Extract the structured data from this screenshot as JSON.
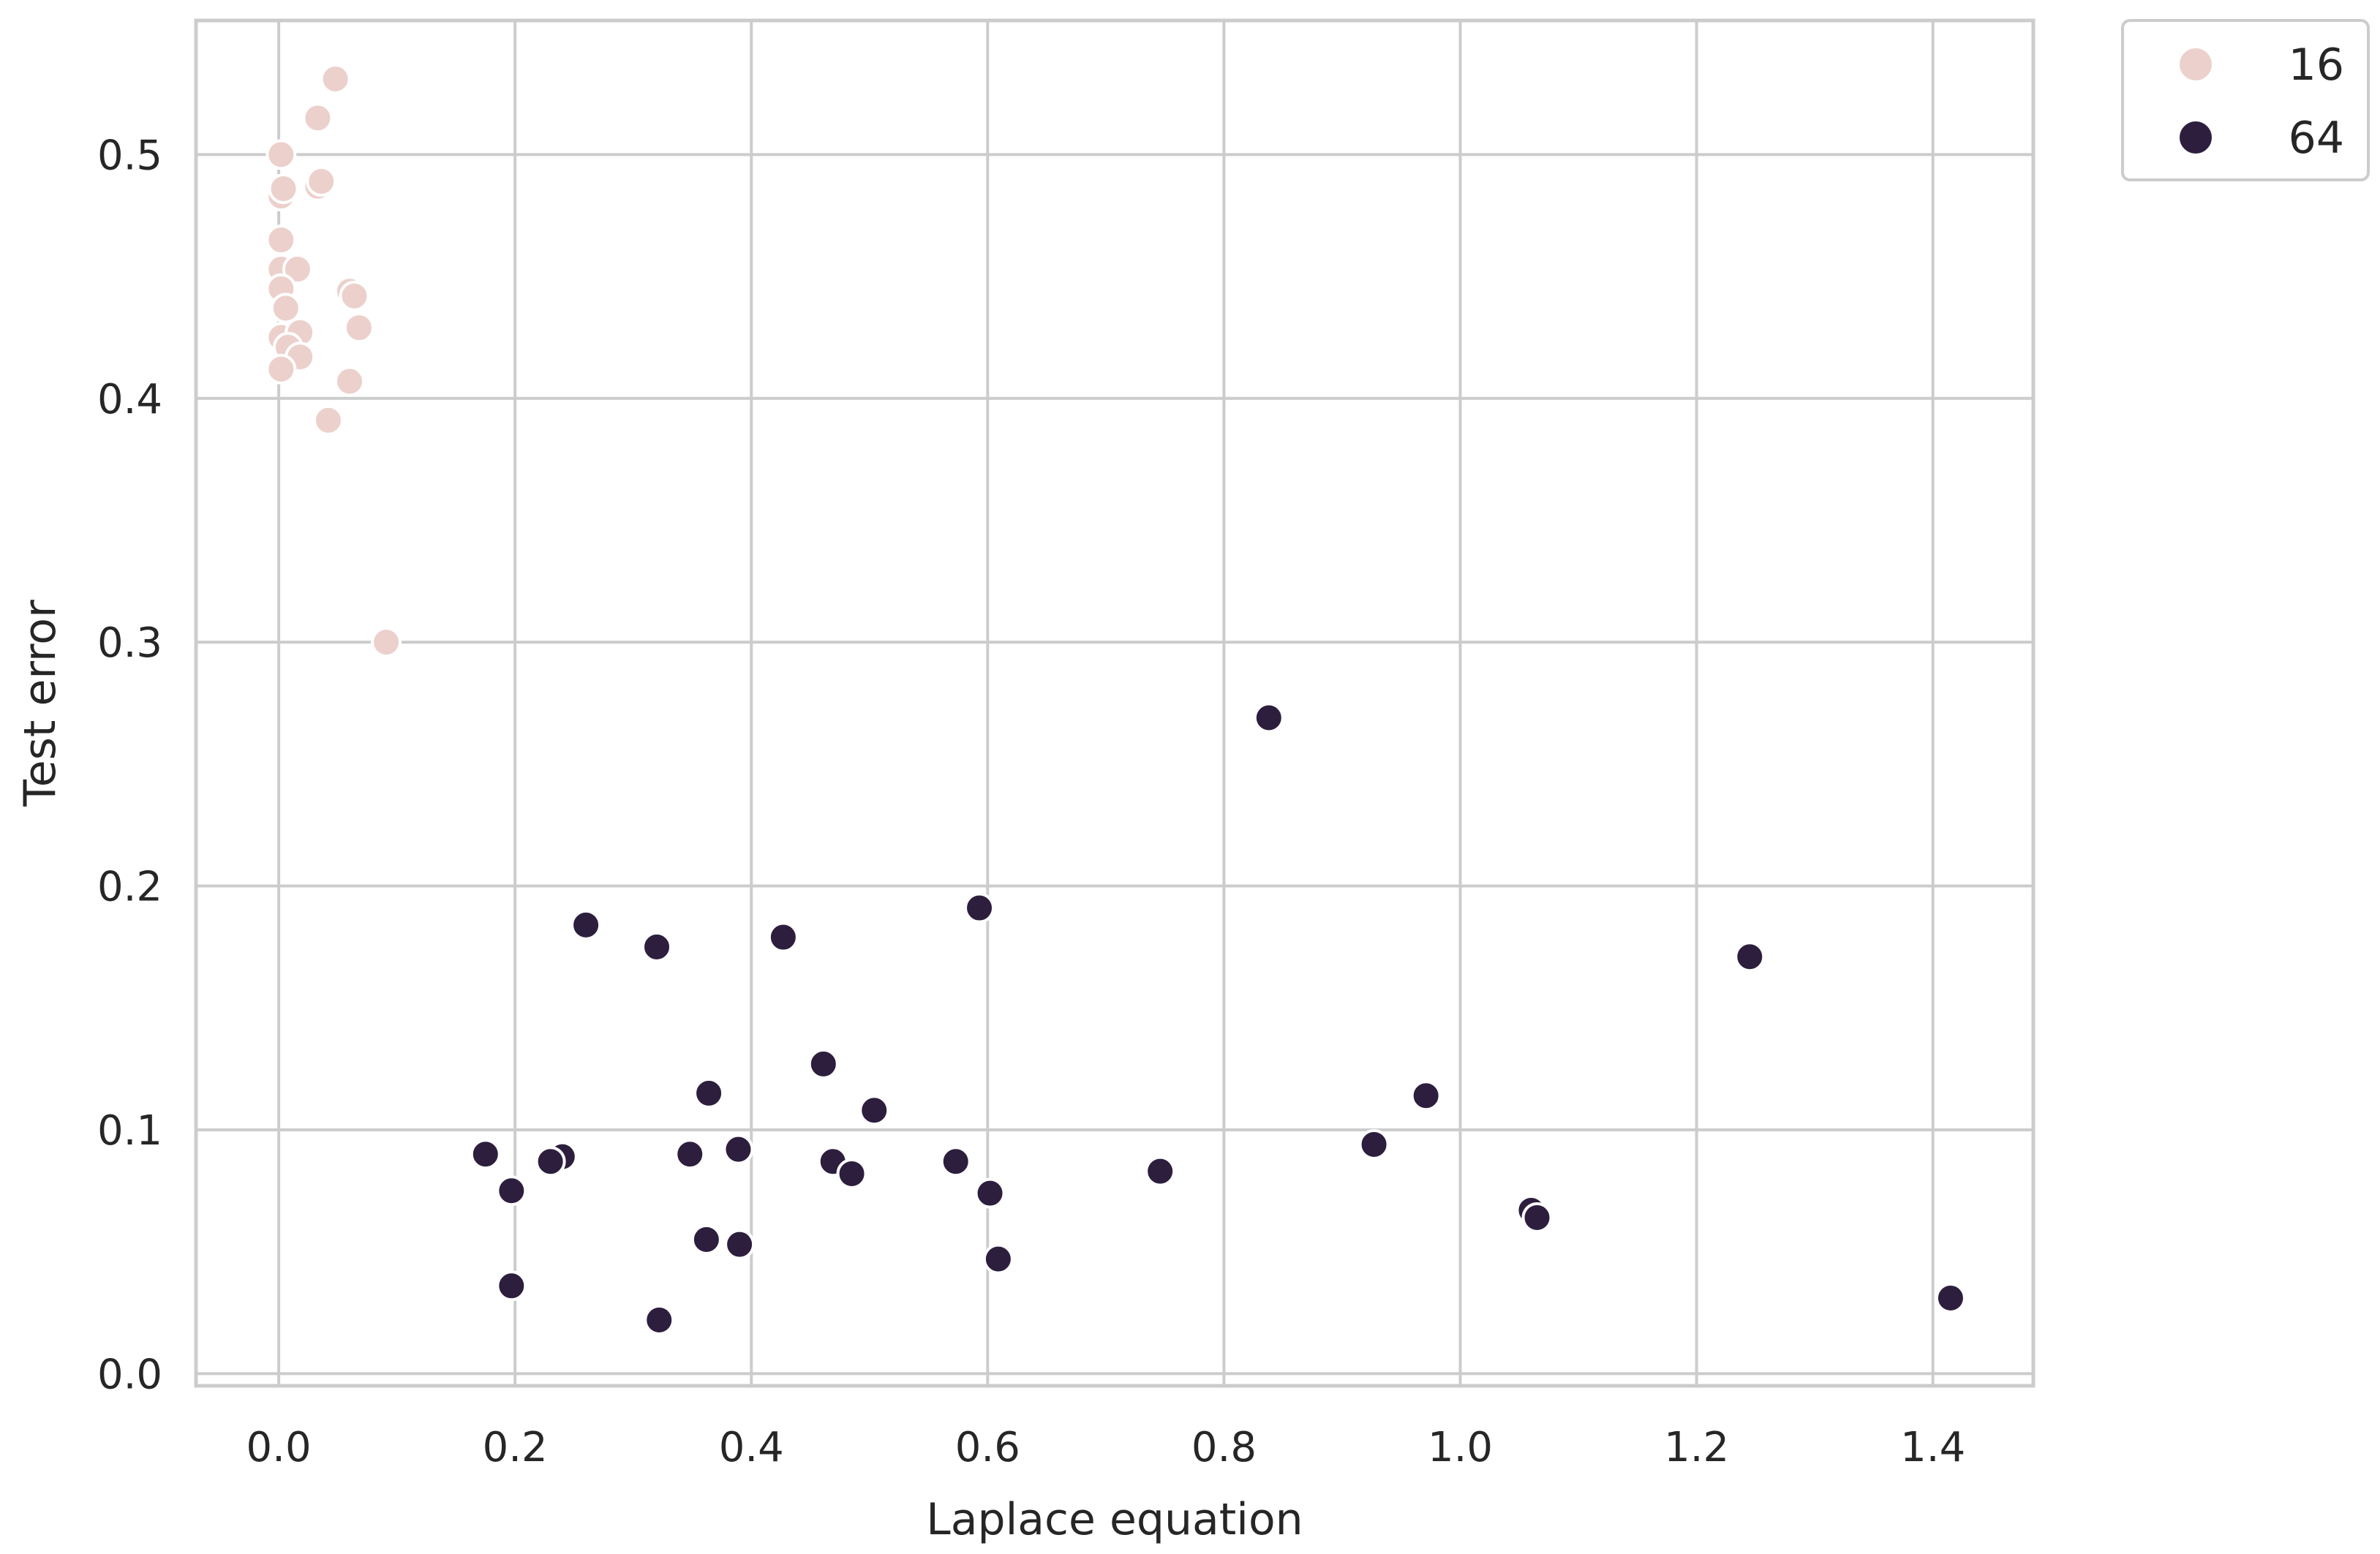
{
  "chart_data": {
    "type": "scatter",
    "title": "",
    "xlabel": "Laplace equation",
    "ylabel": "Test error",
    "xlim": [
      -0.07,
      1.485
    ],
    "ylim": [
      -0.005,
      0.555
    ],
    "xticks": [
      0.0,
      0.2,
      0.4,
      0.6,
      0.8,
      1.0,
      1.2,
      1.4
    ],
    "xtick_labels": [
      "0.0",
      "0.2",
      "0.4",
      "0.6",
      "0.8",
      "1.0",
      "1.2",
      "1.4"
    ],
    "yticks": [
      0.0,
      0.1,
      0.2,
      0.3,
      0.4,
      0.5
    ],
    "ytick_labels": [
      "0.0",
      "0.1",
      "0.2",
      "0.3",
      "0.4",
      "0.5"
    ],
    "grid": true,
    "legend_position": "outside-top-right",
    "series": [
      {
        "name": "16",
        "color": "#ecd0cb",
        "points": [
          [
            0.048,
            0.531
          ],
          [
            0.033,
            0.515
          ],
          [
            0.002,
            0.5
          ],
          [
            0.033,
            0.487
          ],
          [
            0.036,
            0.489
          ],
          [
            0.002,
            0.483
          ],
          [
            0.004,
            0.486
          ],
          [
            0.002,
            0.465
          ],
          [
            0.002,
            0.453
          ],
          [
            0.016,
            0.453
          ],
          [
            0.002,
            0.445
          ],
          [
            0.06,
            0.444
          ],
          [
            0.064,
            0.442
          ],
          [
            0.006,
            0.437
          ],
          [
            0.068,
            0.429
          ],
          [
            0.002,
            0.425
          ],
          [
            0.018,
            0.427
          ],
          [
            0.008,
            0.421
          ],
          [
            0.018,
            0.417
          ],
          [
            0.002,
            0.412
          ],
          [
            0.06,
            0.407
          ],
          [
            0.042,
            0.391
          ],
          [
            0.091,
            0.3
          ]
        ]
      },
      {
        "name": "64",
        "color": "#2d1e3e",
        "points": [
          [
            0.838,
            0.269
          ],
          [
            0.593,
            0.191
          ],
          [
            0.26,
            0.184
          ],
          [
            0.427,
            0.179
          ],
          [
            0.32,
            0.175
          ],
          [
            1.245,
            0.171
          ],
          [
            0.461,
            0.127
          ],
          [
            0.364,
            0.115
          ],
          [
            0.971,
            0.114
          ],
          [
            0.504,
            0.108
          ],
          [
            0.927,
            0.094
          ],
          [
            0.389,
            0.092
          ],
          [
            0.348,
            0.09
          ],
          [
            0.175,
            0.09
          ],
          [
            0.24,
            0.089
          ],
          [
            0.23,
            0.087
          ],
          [
            0.469,
            0.087
          ],
          [
            0.573,
            0.087
          ],
          [
            0.746,
            0.083
          ],
          [
            0.485,
            0.082
          ],
          [
            0.197,
            0.075
          ],
          [
            0.602,
            0.074
          ],
          [
            1.06,
            0.067
          ],
          [
            1.065,
            0.064
          ],
          [
            0.362,
            0.055
          ],
          [
            0.39,
            0.053
          ],
          [
            0.609,
            0.047
          ],
          [
            0.197,
            0.036
          ],
          [
            1.415,
            0.031
          ],
          [
            0.322,
            0.022
          ]
        ]
      }
    ]
  }
}
